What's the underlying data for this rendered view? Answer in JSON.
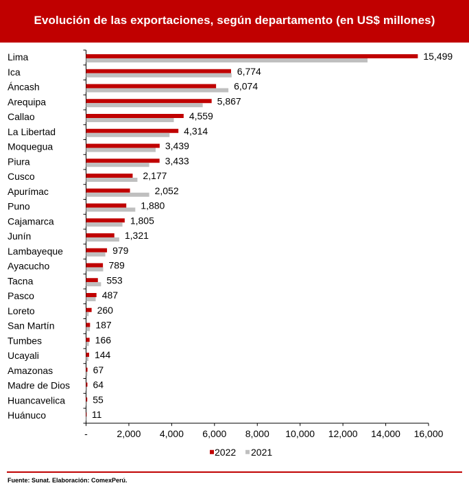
{
  "header": {
    "title": "Evolución de las exportaciones, según departamento (en US$ millones)"
  },
  "footer": {
    "source": "Fuente: Sunat. Elaboración: ComexPerú."
  },
  "colors": {
    "header_bg": "#c00000",
    "series_2022": "#c00000",
    "series_2021": "#bfbfbf"
  },
  "chart_data": {
    "type": "bar",
    "orientation": "horizontal",
    "title": "Evolución de las exportaciones, según departamento (en US$ millones)",
    "xlabel": "",
    "ylabel": "",
    "xlim": [
      0,
      16000
    ],
    "ticks": [
      0,
      2000,
      4000,
      6000,
      8000,
      10000,
      12000,
      14000,
      16000
    ],
    "tick_labels": [
      "-",
      "2,000",
      "4,000",
      "6,000",
      "8,000",
      "10,000",
      "12,000",
      "14,000",
      "16,000"
    ],
    "legend_position": "bottom",
    "categories": [
      "Lima",
      "Ica",
      "Áncash",
      "Arequipa",
      "Callao",
      "La Libertad",
      "Moquegua",
      "Piura",
      "Cusco",
      "Apurímac",
      "Puno",
      "Cajamarca",
      "Junín",
      "Lambayeque",
      "Ayacucho",
      "Tacna",
      "Pasco",
      "Loreto",
      "San Martín",
      "Tumbes",
      "Ucayali",
      "Amazonas",
      "Madre de Dios",
      "Huancavelica",
      "Huánuco"
    ],
    "series": [
      {
        "name": "2022",
        "values": [
          15499,
          6774,
          6074,
          5867,
          4559,
          4314,
          3439,
          3433,
          2177,
          2052,
          1880,
          1805,
          1321,
          979,
          789,
          553,
          487,
          260,
          187,
          166,
          144,
          67,
          64,
          55,
          11
        ],
        "labels": [
          "15,499",
          "6,774",
          "6,074",
          "5,867",
          "4,559",
          "4,314",
          "3,439",
          "3,433",
          "2,177",
          "2,052",
          "1,880",
          "1,805",
          "1,321",
          "979",
          "789",
          "553",
          "487",
          "260",
          "187",
          "166",
          "144",
          "67",
          "64",
          "55",
          "11"
        ]
      },
      {
        "name": "2021",
        "values": [
          13150,
          6800,
          6650,
          5450,
          4100,
          3900,
          3250,
          2950,
          2400,
          2950,
          2300,
          1700,
          1550,
          900,
          800,
          700,
          450,
          120,
          180,
          130,
          110,
          60,
          50,
          40,
          10
        ]
      }
    ]
  }
}
